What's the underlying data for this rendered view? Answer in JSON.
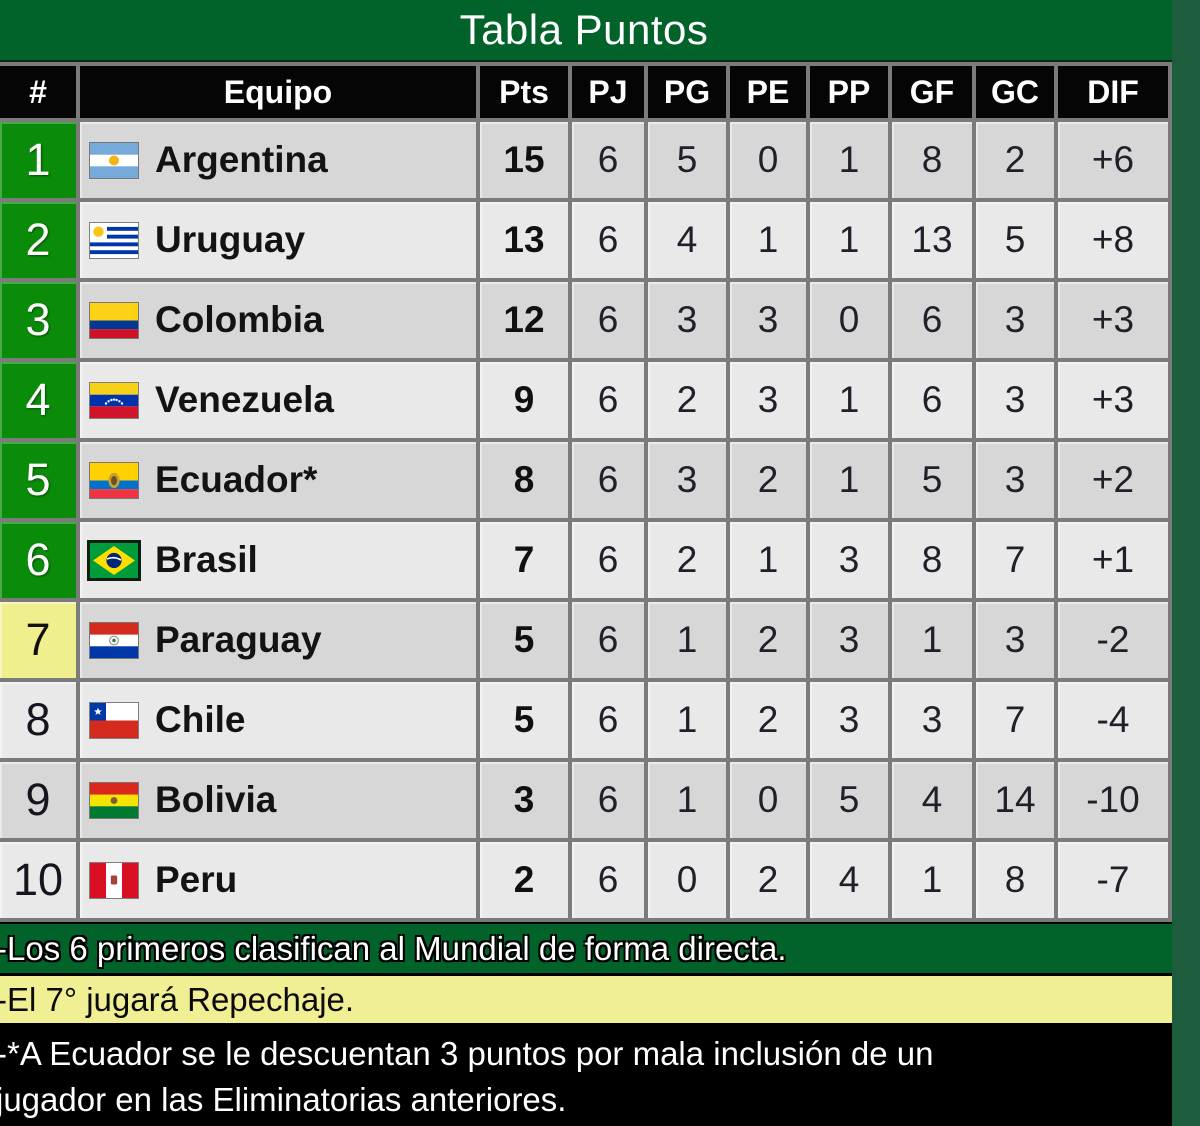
{
  "chart_data": {
    "type": "table",
    "title": "Tabla Puntos",
    "columns": [
      "#",
      "Equipo",
      "Pts",
      "PJ",
      "PG",
      "PE",
      "PP",
      "GF",
      "GC",
      "DIF"
    ],
    "rows": [
      {
        "pos": "1",
        "team": "Argentina",
        "flag": "argentina",
        "zone": "direct",
        "pts": "15",
        "pj": "6",
        "pg": "5",
        "pe": "0",
        "pp": "1",
        "gf": "8",
        "gc": "2",
        "dif": "+6"
      },
      {
        "pos": "2",
        "team": "Uruguay",
        "flag": "uruguay",
        "zone": "direct",
        "pts": "13",
        "pj": "6",
        "pg": "4",
        "pe": "1",
        "pp": "1",
        "gf": "13",
        "gc": "5",
        "dif": "+8"
      },
      {
        "pos": "3",
        "team": "Colombia",
        "flag": "colombia",
        "zone": "direct",
        "pts": "12",
        "pj": "6",
        "pg": "3",
        "pe": "3",
        "pp": "0",
        "gf": "6",
        "gc": "3",
        "dif": "+3"
      },
      {
        "pos": "4",
        "team": "Venezuela",
        "flag": "venezuela",
        "zone": "direct",
        "pts": "9",
        "pj": "6",
        "pg": "2",
        "pe": "3",
        "pp": "1",
        "gf": "6",
        "gc": "3",
        "dif": "+3"
      },
      {
        "pos": "5",
        "team": "Ecuador*",
        "flag": "ecuador",
        "zone": "direct",
        "pts": "8",
        "pj": "6",
        "pg": "3",
        "pe": "2",
        "pp": "1",
        "gf": "5",
        "gc": "3",
        "dif": "+2"
      },
      {
        "pos": "6",
        "team": "Brasil",
        "flag": "brasil",
        "zone": "direct",
        "pts": "7",
        "pj": "6",
        "pg": "2",
        "pe": "1",
        "pp": "3",
        "gf": "8",
        "gc": "7",
        "dif": "+1"
      },
      {
        "pos": "7",
        "team": "Paraguay",
        "flag": "paraguay",
        "zone": "playoff",
        "pts": "5",
        "pj": "6",
        "pg": "1",
        "pe": "2",
        "pp": "3",
        "gf": "1",
        "gc": "3",
        "dif": "-2"
      },
      {
        "pos": "8",
        "team": "Chile",
        "flag": "chile",
        "zone": "none",
        "pts": "5",
        "pj": "6",
        "pg": "1",
        "pe": "2",
        "pp": "3",
        "gf": "3",
        "gc": "7",
        "dif": "-4"
      },
      {
        "pos": "9",
        "team": "Bolivia",
        "flag": "bolivia",
        "zone": "none",
        "pts": "3",
        "pj": "6",
        "pg": "1",
        "pe": "0",
        "pp": "5",
        "gf": "4",
        "gc": "14",
        "dif": "-10"
      },
      {
        "pos": "10",
        "team": "Peru",
        "flag": "peru",
        "zone": "none",
        "pts": "2",
        "pj": "6",
        "pg": "0",
        "pe": "2",
        "pp": "4",
        "gf": "1",
        "gc": "8",
        "dif": "-7"
      }
    ],
    "notes": [
      "-Los 6 primeros clasifican al Mundial de forma directa.",
      "-El 7° jugará Repechaje.",
      "-*A Ecuador se le descuentan 3 puntos por mala inclusión de un jugador en las Eliminatorias anteriores."
    ]
  },
  "title": "Tabla Puntos",
  "notes": {
    "direct": "-Los 6 primeros clasifican al Mundial de forma directa.",
    "playoff": "-El 7° jugará Repechaje.",
    "penalty_line1": "-*A Ecuador se le descuentan 3 puntos por mala inclusión de un",
    "penalty_line2": "jugador en las Eliminatorias anteriores."
  },
  "colors": {
    "page_background": "#1e5c3e",
    "title_bar_green": "#016329",
    "direct_zone_green": "#0a8c0a",
    "playoff_yellow": "#f0ef8d",
    "header_black": "#050505",
    "row_odd_gray": "#d7d7d7",
    "row_even_gray": "#e9e9e9",
    "grid_gray": "#7b7b7b"
  }
}
